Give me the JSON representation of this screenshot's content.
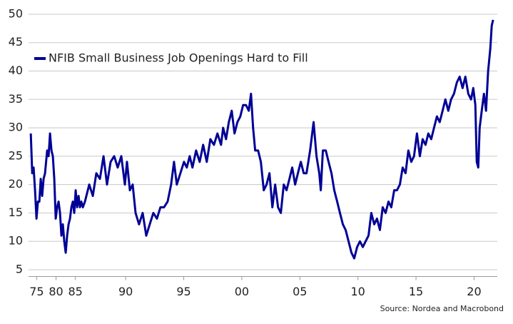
{
  "chart_data": {
    "type": "line",
    "source": "Source: Nordea and Macrobond",
    "legend": "upper left",
    "grid": true,
    "x": [
      1973.48,
      1973.85,
      1974.21,
      1974.58,
      1974.95,
      1975.32,
      1975.69,
      1976.05,
      1976.42,
      1976.79,
      1977.16,
      1977.71,
      1978.08,
      1978.45,
      1978.82,
      1979.18,
      1979.55,
      1979.92,
      1980.29,
      1980.66,
      1981.03,
      1981.39,
      1981.76,
      1982.13,
      1982.5,
      1982.87,
      1983.24,
      1983.61,
      1983.97,
      1984.34,
      1984.71,
      1985.08,
      1985.45,
      1985.82,
      1986.06,
      1986.18,
      1986.31,
      1986.49,
      1986.86,
      1987.17,
      1987.47,
      1987.78,
      1988.09,
      1988.39,
      1988.7,
      1989.01,
      1989.31,
      1989.62,
      1989.93,
      1990.11,
      1990.36,
      1990.6,
      1990.85,
      1991.15,
      1991.46,
      1991.77,
      1992.07,
      1992.38,
      1992.69,
      1992.99,
      1993.3,
      1993.61,
      1993.91,
      1994.16,
      1994.4,
      1994.71,
      1995.02,
      1995.26,
      1995.51,
      1995.75,
      1996.06,
      1996.37,
      1996.67,
      1996.98,
      1997.29,
      1997.6,
      1997.9,
      1998.21,
      1998.39,
      1998.64,
      1998.88,
      1999.13,
      1999.37,
      1999.62,
      1999.87,
      2000.11,
      2000.36,
      2000.6,
      2000.79,
      2000.97,
      2001.15,
      2001.4,
      2001.64,
      2001.89,
      2002.13,
      2002.38,
      2002.63,
      2002.87,
      2003.12,
      2003.36,
      2003.61,
      2003.85,
      2004.1,
      2004.34,
      2004.59,
      2004.83,
      2005.08,
      2005.33,
      2005.57,
      2005.88,
      2006.18,
      2006.43,
      2006.67,
      2006.8,
      2006.98,
      2007.23,
      2007.47,
      2007.72,
      2007.96,
      2008.21,
      2008.45,
      2008.7,
      2008.94,
      2009.19,
      2009.44,
      2009.68,
      2009.93,
      2010.17,
      2010.42,
      2010.66,
      2010.91,
      2011.15,
      2011.4,
      2011.64,
      2011.89,
      2012.13,
      2012.38,
      2012.63,
      2012.87,
      2013.12,
      2013.36,
      2013.61,
      2013.85,
      2014.1,
      2014.34,
      2014.59,
      2014.83,
      2015.08,
      2015.33,
      2015.57,
      2015.82,
      2016.06,
      2016.31,
      2016.55,
      2016.8,
      2017.04,
      2017.29,
      2017.53,
      2017.78,
      2018.02,
      2018.27,
      2018.52,
      2018.76,
      2019.01,
      2019.25,
      2019.5,
      2019.74,
      2019.93,
      2020.11,
      2020.23,
      2020.36,
      2020.48,
      2020.66,
      2020.85,
      2021.03,
      2021.21,
      2021.4,
      2021.52,
      2021.64
    ],
    "series": [
      {
        "name": "NFIB Small Business Job Openings Hard to Fill",
        "color": "#000096",
        "values": [
          29,
          22,
          23,
          19,
          14,
          17,
          17,
          21,
          18,
          21,
          22,
          26,
          25,
          29,
          26,
          25,
          21,
          14,
          16,
          17,
          15,
          11,
          13,
          10,
          8,
          11,
          13,
          14,
          16,
          17,
          15,
          19,
          16,
          18,
          16,
          17,
          16,
          17,
          20,
          18,
          22,
          21,
          25,
          20,
          24,
          25,
          23,
          25,
          20,
          24,
          19,
          20,
          15,
          13,
          15,
          11,
          13,
          15,
          14,
          16,
          16,
          17,
          20,
          24,
          20,
          22,
          24,
          23,
          25,
          23,
          26,
          24,
          27,
          24,
          28,
          27,
          29,
          27,
          30,
          28,
          31,
          33,
          29,
          31,
          32,
          34,
          34,
          33,
          36,
          30,
          26,
          26,
          24,
          19,
          20,
          22,
          16,
          20,
          16,
          15,
          20,
          19,
          21,
          23,
          20,
          22,
          24,
          22,
          22,
          26,
          31,
          25,
          22,
          19,
          26,
          26,
          24,
          22,
          19,
          17,
          15,
          13,
          12,
          10,
          8,
          7,
          9,
          10,
          9,
          10,
          11,
          15,
          13,
          14,
          12,
          16,
          15,
          17,
          16,
          19,
          19,
          20,
          23,
          22,
          26,
          24,
          25,
          29,
          25,
          28,
          27,
          29,
          28,
          30,
          32,
          31,
          33,
          35,
          33,
          35,
          36,
          38,
          39,
          37,
          39,
          36,
          35,
          37,
          34,
          24,
          23,
          30,
          33,
          36,
          33,
          40,
          44,
          48,
          49
        ]
      }
    ],
    "xlim": [
      1972.9,
      2022
    ],
    "xticks": [
      {
        "value": 1975,
        "label": "75"
      },
      {
        "value": 1980,
        "label": "80"
      },
      {
        "value": 1985,
        "label": "85"
      },
      {
        "value": 1990,
        "label": "90"
      },
      {
        "value": 1995,
        "label": "95"
      },
      {
        "value": 2000,
        "label": "00"
      },
      {
        "value": 2005,
        "label": "05"
      },
      {
        "value": 2010,
        "label": "10"
      },
      {
        "value": 2015,
        "label": "15"
      },
      {
        "value": 2020,
        "label": "20"
      }
    ],
    "ylim": [
      3.8,
      51
    ],
    "yticks": [
      5,
      10,
      15,
      20,
      25,
      30,
      35,
      40,
      45,
      50
    ]
  }
}
